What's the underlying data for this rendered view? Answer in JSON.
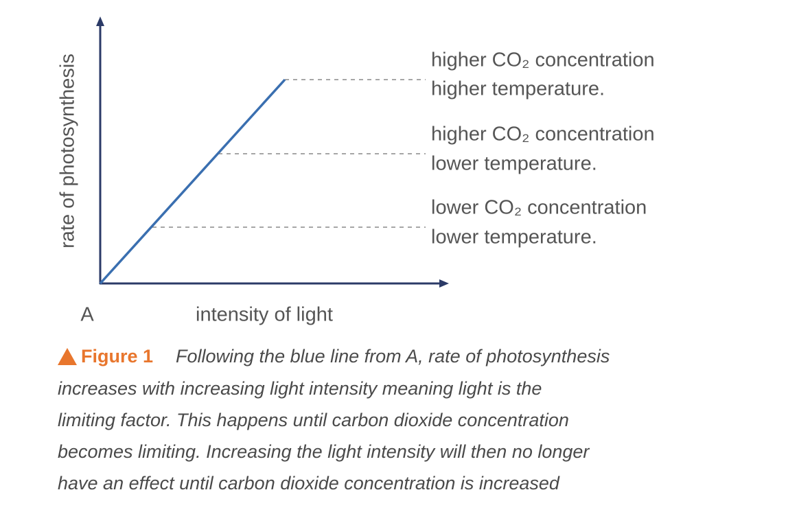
{
  "diagram": {
    "y_axis_label": "rate of photosynthesis",
    "x_axis_label": "intensity of light",
    "origin_label": "A",
    "plateaus": [
      {
        "lines": [
          "higher CO₂ concentration",
          "higher temperature."
        ]
      },
      {
        "lines": [
          "higher CO₂ concentration",
          "lower temperature."
        ]
      },
      {
        "lines": [
          "lower CO₂ concentration",
          "lower temperature."
        ]
      }
    ]
  },
  "caption": {
    "label": "Figure 1",
    "lines": [
      "Following the blue line from A, rate of photosynthesis",
      "increases with increasing light intensity meaning light is the",
      "limiting factor. This happens until carbon dioxide concentration",
      "becomes limiting. Increasing the light intensity will then no longer",
      "have an effect until carbon dioxide concentration is increased"
    ]
  }
}
